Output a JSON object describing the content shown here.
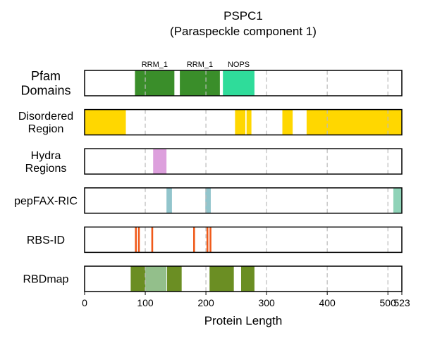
{
  "chart_data": {
    "type": "bar",
    "title": "PSPC1",
    "subtitle": "(Paraspeckle component 1)",
    "xlabel": "Protein Length",
    "xlim": [
      0,
      523
    ],
    "xticks": [
      0,
      100,
      200,
      300,
      400,
      500,
      523
    ],
    "vlines": [
      100,
      200,
      300,
      400,
      500
    ],
    "grid": "vertical dashed at x ticks",
    "tracks": [
      {
        "name": "Pfam Domains",
        "label_lines": [
          "Pfam",
          "Domains"
        ],
        "segments": [
          {
            "start": 83,
            "end": 148,
            "color": "#3a8e2a",
            "label": "RRM_1"
          },
          {
            "start": 157,
            "end": 223,
            "color": "#3a8e2a",
            "label": "RRM_1"
          },
          {
            "start": 228,
            "end": 280,
            "color": "#2fdc9a",
            "label": "NOPS"
          }
        ]
      },
      {
        "name": "Disordered Region",
        "label_lines": [
          "Disordered",
          "Region"
        ],
        "segments": [
          {
            "start": 0,
            "end": 68,
            "color": "#ffd700"
          },
          {
            "start": 248,
            "end": 265,
            "color": "#ffd700"
          },
          {
            "start": 267,
            "end": 275,
            "color": "#ffd700"
          },
          {
            "start": 326,
            "end": 343,
            "color": "#ffd700"
          },
          {
            "start": 366,
            "end": 523,
            "color": "#ffd700"
          }
        ]
      },
      {
        "name": "Hydra Regions",
        "label_lines": [
          "Hydra",
          "Regions"
        ],
        "segments": [
          {
            "start": 113,
            "end": 135,
            "color": "#dda0dd"
          }
        ]
      },
      {
        "name": "pepFAX-RIC",
        "label_lines": [
          "pepFAX-RIC"
        ],
        "segments": [
          {
            "start": 135,
            "end": 144,
            "color": "#92c5cc"
          },
          {
            "start": 199,
            "end": 208,
            "color": "#92c5cc"
          },
          {
            "start": 509,
            "end": 523,
            "color": "#8fd3b8"
          }
        ]
      },
      {
        "name": "RBS-ID",
        "label_lines": [
          "RBS-ID"
        ],
        "segments": [
          {
            "start": 83,
            "end": 86,
            "color": "#f05a1a"
          },
          {
            "start": 88,
            "end": 91,
            "color": "#f05a1a"
          },
          {
            "start": 110,
            "end": 113,
            "color": "#f05a1a"
          },
          {
            "start": 179,
            "end": 182,
            "color": "#f05a1a"
          },
          {
            "start": 201,
            "end": 204,
            "color": "#f05a1a"
          },
          {
            "start": 206,
            "end": 209,
            "color": "#f05a1a"
          }
        ]
      },
      {
        "name": "RBDmap",
        "label_lines": [
          "RBDmap"
        ],
        "segments": [
          {
            "start": 76,
            "end": 100,
            "color": "#6b8e23"
          },
          {
            "start": 100,
            "end": 135,
            "color": "#93bf8b"
          },
          {
            "start": 136,
            "end": 160,
            "color": "#6b8e23"
          },
          {
            "start": 206,
            "end": 246,
            "color": "#6b8e23"
          },
          {
            "start": 258,
            "end": 280,
            "color": "#6b8e23"
          }
        ]
      }
    ]
  }
}
